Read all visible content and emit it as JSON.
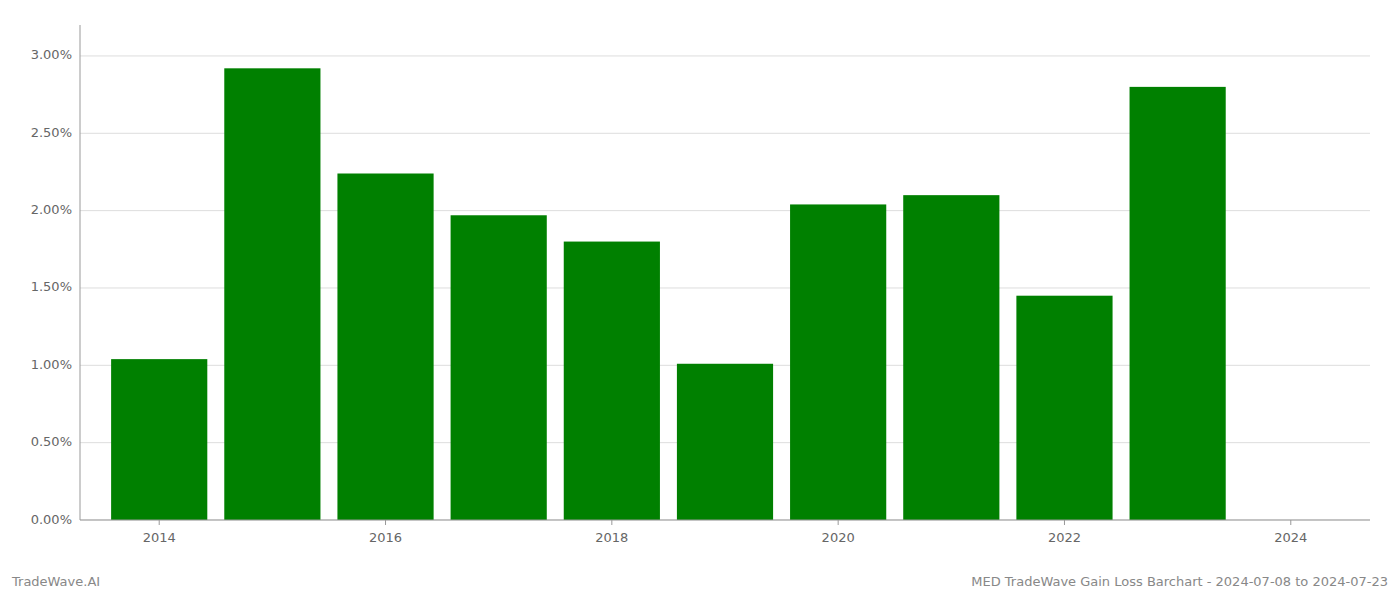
{
  "chart_data": {
    "type": "bar",
    "title": "MED TradeWave Gain Loss Barchart - 2024-07-08 to 2024-07-23",
    "annotations": [
      "TradeWave.AI"
    ],
    "x": [
      2014,
      2015,
      2016,
      2017,
      2018,
      2019,
      2020,
      2021,
      2022,
      2023
    ],
    "values": [
      0.0104,
      0.0292,
      0.0224,
      0.0197,
      0.018,
      0.0101,
      0.0204,
      0.021,
      0.0145,
      0.028
    ],
    "color": "#008000",
    "xlim": [
      2013.3,
      2024.7
    ],
    "xticks": [
      2014,
      2016,
      2018,
      2020,
      2022,
      2024
    ],
    "ylim": [
      0,
      0.032
    ],
    "yticks": [
      {
        "value": 0.0,
        "label": "0.00%"
      },
      {
        "value": 0.005,
        "label": "0.50%"
      },
      {
        "value": 0.01,
        "label": "1.00%"
      },
      {
        "value": 0.015,
        "label": "1.50%"
      },
      {
        "value": 0.02,
        "label": "2.00%"
      },
      {
        "value": 0.025,
        "label": "2.50%"
      },
      {
        "value": 0.03,
        "label": "3.00%"
      }
    ],
    "grid": true
  }
}
